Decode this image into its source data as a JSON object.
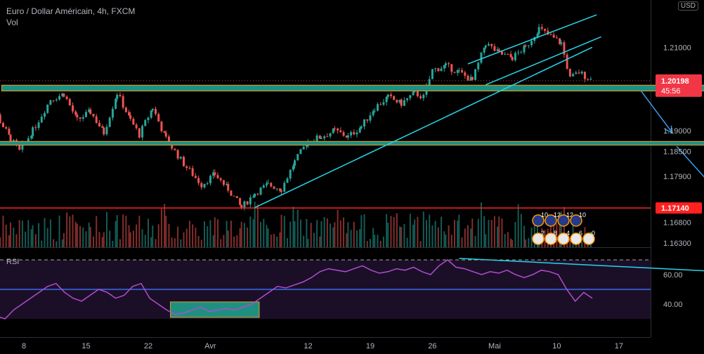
{
  "header": {
    "title": "Euro / Dollar Américain, 4h, FXCM",
    "volume_label": "Vol",
    "currency": "USD"
  },
  "colors": {
    "up": "#26a69a",
    "down": "#ef5350",
    "zone": "#1f9080",
    "zone_border": "#e0a030",
    "trend": "#26d4e8",
    "support": "#ff2020",
    "arrow": "#3d9be9",
    "rsi": "#b04cd0",
    "rsi_mid": "#3c6cf0",
    "rsi_band": "#1b0f27",
    "price_tag": "#f23645"
  },
  "chart_data": [
    {
      "type": "candlestick",
      "title": "Euro / Dollar Américain, 4h, FXCM",
      "xlabel": "",
      "ylabel": "",
      "x_ticks": [
        "8",
        "15",
        "22",
        "Avr",
        "12",
        "19",
        "26",
        "Mai",
        "10",
        "17"
      ],
      "y_ticks": [
        "1.21000",
        "1.20198",
        "1.19000",
        "1.18500",
        "1.17900",
        "1.17140",
        "1.16800",
        "1.16300"
      ],
      "y_range": [
        1.1615,
        1.2225
      ],
      "last_price": "1.20198",
      "countdown": "45:56",
      "support_level": "1.17140",
      "price_path": [
        {
          "day": 3,
          "price": 1.2007
        },
        {
          "day": 5,
          "price": 1.1935
        },
        {
          "day": 6.5,
          "price": 1.188
        },
        {
          "day": 7.5,
          "price": 1.185
        },
        {
          "day": 9,
          "price": 1.19
        },
        {
          "day": 11,
          "price": 1.1975
        },
        {
          "day": 12.5,
          "price": 1.1988
        },
        {
          "day": 14,
          "price": 1.1925
        },
        {
          "day": 15.5,
          "price": 1.1945
        },
        {
          "day": 17,
          "price": 1.1895
        },
        {
          "day": 18.5,
          "price": 1.199
        },
        {
          "day": 20,
          "price": 1.1925
        },
        {
          "day": 21,
          "price": 1.189
        },
        {
          "day": 22.5,
          "price": 1.1955
        },
        {
          "day": 24,
          "price": 1.188
        },
        {
          "day": 26,
          "price": 1.182
        },
        {
          "day": 28,
          "price": 1.177
        },
        {
          "day": 29.5,
          "price": 1.1795
        },
        {
          "day": 31,
          "price": 1.176
        },
        {
          "day": 32.5,
          "price": 1.1715
        },
        {
          "day": 34,
          "price": 1.175
        },
        {
          "day": 35.5,
          "price": 1.177
        },
        {
          "day": 37,
          "price": 1.176
        },
        {
          "day": 38.5,
          "price": 1.1825
        },
        {
          "day": 40,
          "price": 1.1875
        },
        {
          "day": 41.5,
          "price": 1.1885
        },
        {
          "day": 43,
          "price": 1.19
        },
        {
          "day": 44.5,
          "price": 1.1885
        },
        {
          "day": 46,
          "price": 1.191
        },
        {
          "day": 47.5,
          "price": 1.1955
        },
        {
          "day": 49,
          "price": 1.198
        },
        {
          "day": 50.5,
          "price": 1.1965
        },
        {
          "day": 52,
          "price": 1.199
        },
        {
          "day": 53,
          "price": 1.198
        },
        {
          "day": 54,
          "price": 1.2045
        },
        {
          "day": 55.5,
          "price": 1.2055
        },
        {
          "day": 57,
          "price": 1.204
        },
        {
          "day": 58.5,
          "price": 1.202
        },
        {
          "day": 60,
          "price": 1.211
        },
        {
          "day": 61.5,
          "price": 1.2085
        },
        {
          "day": 63,
          "price": 1.2075
        },
        {
          "day": 64.5,
          "price": 1.21
        },
        {
          "day": 66,
          "price": 1.2145
        },
        {
          "day": 67,
          "price": 1.213
        },
        {
          "day": 68.5,
          "price": 1.211
        },
        {
          "day": 69.5,
          "price": 1.2025
        },
        {
          "day": 70.5,
          "price": 1.204
        },
        {
          "day": 72,
          "price": 1.202
        }
      ],
      "zones": [
        {
          "from_day": 5.5,
          "to_day": 94,
          "low": 1.1995,
          "high": 1.2009
        },
        {
          "from_day": 3.5,
          "to_day": 94,
          "low": 1.1865,
          "high": 1.1874
        }
      ],
      "trendlines": [
        {
          "x1": 34,
          "y1": 1.1715,
          "x2": 72,
          "y2": 1.21
        },
        {
          "x1": 58,
          "y1": 1.206,
          "x2": 72.5,
          "y2": 1.2178
        },
        {
          "x1": 60,
          "y1": 1.201,
          "x2": 73,
          "y2": 1.2125
        }
      ],
      "arrows": [
        {
          "x1": 77.5,
          "y1": 1.1995,
          "x2": 81,
          "y2": 1.1895
        },
        {
          "x1": 81.5,
          "y1": 1.1862,
          "x2": 87.5,
          "y2": 1.172
        }
      ],
      "event_rows": [
        {
          "flag": "EU",
          "counts": [
            "10",
            "12",
            "12",
            "10"
          ]
        },
        {
          "flag": "US",
          "counts": [
            "2",
            "8",
            "4",
            "6",
            "0"
          ]
        }
      ]
    },
    {
      "type": "line",
      "title": "RSI",
      "y_ticks": [
        "60.00",
        "40.00"
      ],
      "y_range": [
        20,
        79
      ],
      "levels": [
        50,
        70,
        30
      ],
      "x": [
        0,
        1,
        2,
        3,
        4,
        5,
        6,
        7,
        8,
        9,
        10,
        11,
        12,
        13,
        14,
        15,
        16,
        17,
        18,
        19,
        20,
        21,
        22,
        23,
        24,
        25,
        26,
        27,
        28,
        29,
        30,
        31,
        32,
        33,
        34,
        35,
        36,
        37,
        38,
        39,
        40,
        41,
        42,
        43,
        44,
        45,
        46,
        47,
        48,
        49,
        50,
        51,
        52,
        53,
        54,
        55,
        56,
        57,
        58,
        59,
        60,
        61,
        62,
        63,
        64,
        65,
        66,
        67,
        68,
        69,
        70,
        71,
        72
      ],
      "values": [
        42,
        38,
        32,
        30,
        36,
        40,
        44,
        48,
        52,
        54,
        48,
        44,
        42,
        46,
        50,
        48,
        44,
        46,
        52,
        54,
        44,
        40,
        36,
        33,
        34,
        36,
        38,
        35,
        36,
        37,
        36,
        38,
        40,
        44,
        48,
        52,
        51,
        53,
        55,
        58,
        62,
        64,
        63,
        62,
        64,
        66,
        63,
        61,
        62,
        64,
        63,
        65,
        62,
        60,
        66,
        70,
        65,
        64,
        62,
        60,
        62,
        61,
        63,
        60,
        58,
        60,
        63,
        62,
        60,
        50,
        42,
        48,
        44
      ],
      "trendline": {
        "x1": 57,
        "y1": 71,
        "x2": 90,
        "y2": 61
      },
      "box": {
        "x1": 24.5,
        "x2": 34.5,
        "low": 31,
        "high": 41.5
      }
    }
  ]
}
